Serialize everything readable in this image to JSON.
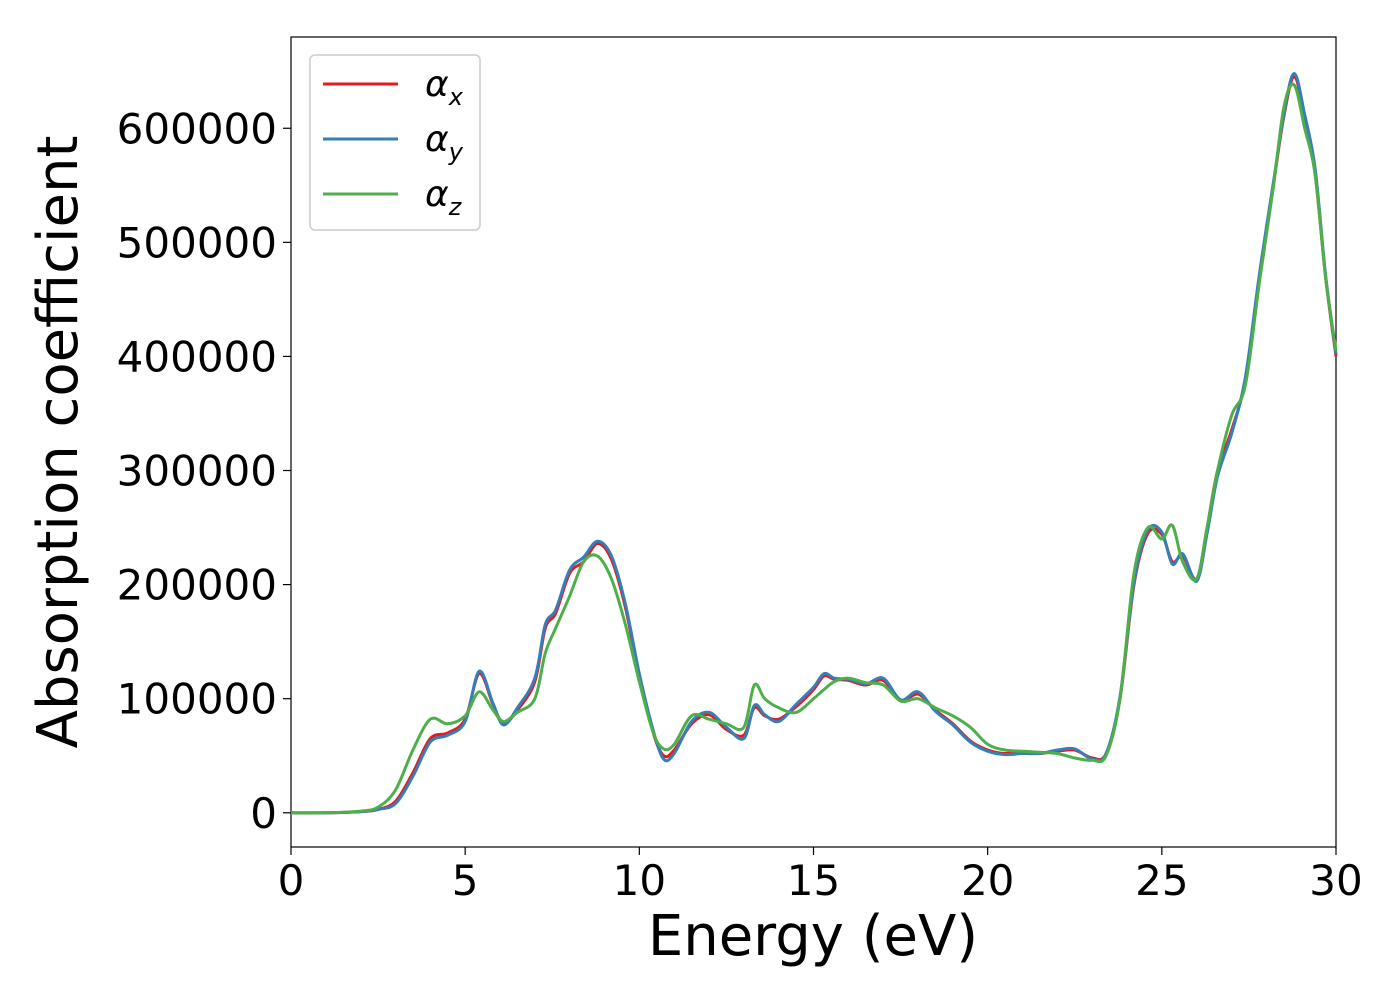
{
  "chart_data": {
    "type": "line",
    "xlabel": "Energy (eV)",
    "ylabel": "Absorption coefficient",
    "xlim": [
      0,
      30
    ],
    "ylim": [
      -30000,
      680000
    ],
    "xticks": [
      0,
      5,
      10,
      15,
      20,
      25,
      30
    ],
    "yticks": [
      0,
      100000,
      200000,
      300000,
      400000,
      500000,
      600000
    ],
    "grid": false,
    "legend_position": "top-left",
    "x": [
      0,
      1,
      2,
      2.5,
      3,
      3.5,
      4,
      4.5,
      5,
      5.4,
      5.8,
      6.1,
      6.5,
      7,
      7.3,
      7.6,
      8,
      8.4,
      8.8,
      9.2,
      9.6,
      10,
      10.4,
      10.7,
      11,
      11.5,
      12,
      12.5,
      13,
      13.3,
      13.6,
      14,
      14.5,
      15,
      15.3,
      15.6,
      16,
      16.5,
      17,
      17.5,
      18,
      18.5,
      19,
      19.5,
      20,
      20.5,
      21,
      21.5,
      22,
      22.5,
      23,
      23.4,
      23.8,
      24.2,
      24.6,
      25,
      25.3,
      25.6,
      26,
      26.3,
      26.6,
      27,
      27.4,
      27.8,
      28.2,
      28.5,
      28.8,
      29.1,
      29.4,
      29.7,
      30
    ],
    "series": [
      {
        "name": "α",
        "subscript": "x",
        "color": "#e41a1c",
        "values": [
          0,
          0,
          1000,
          3000,
          10000,
          35000,
          65000,
          70000,
          82000,
          122000,
          95000,
          78000,
          90000,
          115000,
          162000,
          175000,
          210000,
          220000,
          236000,
          222000,
          180000,
          120000,
          70000,
          50000,
          55000,
          78000,
          86000,
          73000,
          68000,
          92000,
          85000,
          82000,
          93000,
          108000,
          120000,
          117000,
          116000,
          112000,
          116000,
          98000,
          104000,
          90000,
          78000,
          63000,
          55000,
          52000,
          53000,
          52000,
          54000,
          55000,
          48000,
          52000,
          100000,
          200000,
          245000,
          244000,
          220000,
          225000,
          205000,
          250000,
          300000,
          335000,
          380000,
          470000,
          550000,
          610000,
          645000,
          610000,
          560000,
          470000,
          400000
        ]
      },
      {
        "name": "α",
        "subscript": "y",
        "color": "#377eb8",
        "values": [
          0,
          0,
          1000,
          3000,
          8000,
          32000,
          62000,
          68000,
          80000,
          124000,
          96000,
          77000,
          92000,
          118000,
          165000,
          178000,
          213000,
          224000,
          238000,
          225000,
          183000,
          122000,
          72000,
          47000,
          52000,
          80000,
          88000,
          75000,
          65000,
          94000,
          86000,
          80000,
          95000,
          110000,
          122000,
          118000,
          117000,
          113000,
          118000,
          99000,
          106000,
          89000,
          77000,
          62000,
          54000,
          51000,
          52000,
          52000,
          55000,
          56000,
          47000,
          52000,
          102000,
          202000,
          248000,
          246000,
          218000,
          227000,
          203000,
          245000,
          295000,
          332000,
          382000,
          472000,
          552000,
          612000,
          648000,
          612000,
          565000,
          472000,
          402000
        ]
      },
      {
        "name": "α",
        "subscript": "z",
        "color": "#4daf4a",
        "values": [
          0,
          0,
          1500,
          5000,
          20000,
          55000,
          82000,
          78000,
          85000,
          106000,
          90000,
          80000,
          88000,
          100000,
          140000,
          162000,
          190000,
          220000,
          225000,
          205000,
          165000,
          115000,
          70000,
          56000,
          60000,
          85000,
          82000,
          78000,
          75000,
          112000,
          100000,
          92000,
          88000,
          100000,
          108000,
          115000,
          118000,
          114000,
          112000,
          98000,
          100000,
          92000,
          85000,
          75000,
          60000,
          55000,
          54000,
          53000,
          52000,
          48000,
          46000,
          50000,
          100000,
          210000,
          250000,
          240000,
          252000,
          220000,
          205000,
          250000,
          300000,
          348000,
          375000,
          465000,
          548000,
          618000,
          638000,
          600000,
          560000,
          470000,
          405000
        ]
      }
    ]
  }
}
